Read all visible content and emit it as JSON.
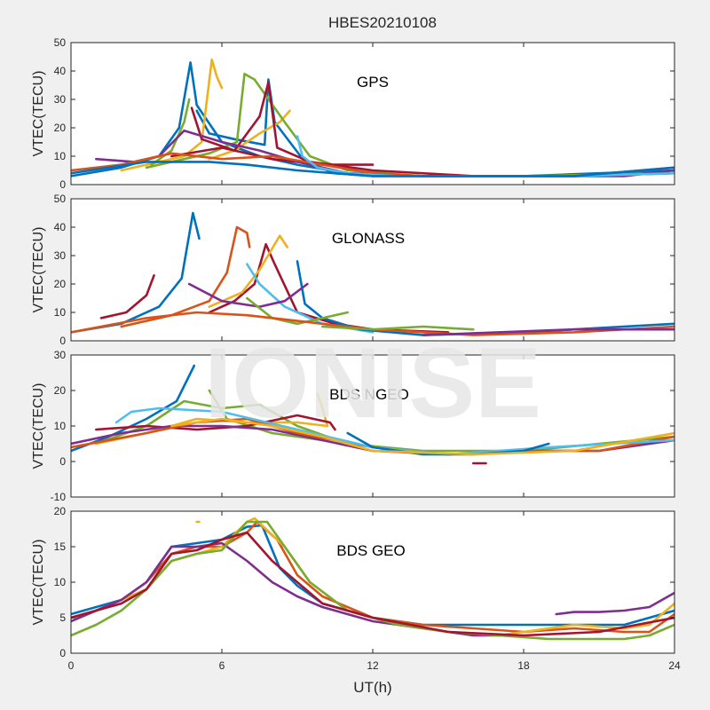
{
  "figure": {
    "title": "HBES20210108",
    "watermark": "IONISE",
    "xlabel": "UT(h)"
  },
  "colors": {
    "background": "#f0f0f0",
    "axes_bg": "#ffffff",
    "axis": "#262626",
    "watermark": "#e6e6e6",
    "series": [
      "#0072BD",
      "#D95319",
      "#EDB120",
      "#7E2F8E",
      "#77AC30",
      "#4DBEEE",
      "#A2142F"
    ]
  },
  "chart_data": [
    {
      "type": "line",
      "label": "GPS",
      "ylabel": "VTEC(TECU)",
      "xlim": [
        0,
        24
      ],
      "ylim": [
        0,
        50
      ],
      "xticks": [
        0,
        6,
        12,
        18,
        24
      ],
      "yticks": [
        0,
        10,
        20,
        30,
        40,
        50
      ],
      "show_xtick_labels": false,
      "series": [
        {
          "color": 0,
          "x": [
            0,
            2,
            3.5,
            4.3,
            4.75,
            5.0,
            6,
            7.5,
            9,
            11,
            14,
            18,
            24
          ],
          "y": [
            3,
            6,
            10,
            20,
            43,
            28,
            15,
            10,
            7,
            4,
            3,
            3,
            5
          ]
        },
        {
          "color": 0,
          "x": [
            5.0,
            5.5,
            6.5,
            7.7,
            7.85,
            8.1,
            9.3,
            10.5,
            12,
            15
          ],
          "y": [
            26,
            18,
            16,
            14,
            37,
            22,
            8,
            4,
            3,
            3
          ]
        },
        {
          "color": 2,
          "x": [
            2,
            3.5,
            4.5,
            5.2,
            5.6,
            5.8,
            6.0
          ],
          "y": [
            5,
            8,
            10,
            15,
            44,
            38,
            34
          ]
        },
        {
          "color": 2,
          "x": [
            5.5,
            6.5,
            7.5,
            8.3,
            8.7
          ],
          "y": [
            9,
            12,
            18,
            22,
            26
          ]
        },
        {
          "color": 4,
          "x": [
            3,
            4.5,
            5.5,
            6.6,
            6.9,
            7.3,
            8.5,
            9.5,
            11,
            14,
            18,
            24
          ],
          "y": [
            6,
            9,
            11,
            15,
            39,
            37,
            22,
            10,
            5,
            3,
            3,
            4
          ]
        },
        {
          "color": 4,
          "x": [
            3.2,
            4.0,
            4.5,
            4.7
          ],
          "y": [
            7,
            12,
            22,
            30
          ]
        },
        {
          "color": 6,
          "x": [
            4.8,
            5.2,
            6.5,
            7.5,
            7.85,
            8.2,
            9.5,
            12,
            16,
            20,
            24
          ],
          "y": [
            27,
            16,
            12,
            24,
            36,
            13,
            8,
            5,
            3,
            3,
            4
          ]
        },
        {
          "color": 6,
          "x": [
            4,
            6,
            8,
            10,
            12
          ],
          "y": [
            10,
            13,
            9,
            7,
            7
          ]
        },
        {
          "color": 3,
          "x": [
            1,
            2.5,
            3.5,
            4.5,
            6,
            7.5,
            9,
            11,
            14,
            18,
            22,
            24
          ],
          "y": [
            9,
            8,
            10,
            19,
            15,
            12,
            8,
            4,
            3,
            3,
            3,
            5
          ]
        },
        {
          "color": 1,
          "x": [
            0,
            2,
            4,
            6,
            8,
            10,
            12,
            14,
            17,
            20,
            24
          ],
          "y": [
            5,
            7,
            11,
            9,
            10,
            7,
            4,
            3,
            3,
            3,
            6
          ]
        },
        {
          "color": 5,
          "x": [
            9.0,
            9.2,
            9.8,
            11,
            13,
            16,
            20,
            24
          ],
          "y": [
            17,
            10,
            6,
            4,
            3,
            3,
            3,
            4
          ]
        },
        {
          "color": 0,
          "x": [
            0,
            3,
            5.5,
            7,
            9,
            12,
            16,
            20,
            24
          ],
          "y": [
            4,
            8,
            8,
            7,
            5,
            3,
            3,
            3,
            6
          ]
        }
      ]
    },
    {
      "type": "line",
      "label": "GLONASS",
      "ylabel": "VTEC(TECU)",
      "xlim": [
        0,
        24
      ],
      "ylim": [
        0,
        50
      ],
      "xticks": [
        0,
        6,
        12,
        18,
        24
      ],
      "yticks": [
        0,
        10,
        20,
        30,
        40,
        50
      ],
      "show_xtick_labels": false,
      "series": [
        {
          "color": 0,
          "x": [
            0,
            2,
            3.5,
            4.4,
            4.85,
            5.1
          ],
          "y": [
            3,
            6,
            12,
            22,
            45,
            36
          ]
        },
        {
          "color": 1,
          "x": [
            2,
            4,
            5.5,
            6.2,
            6.6,
            7.0,
            7.1
          ],
          "y": [
            5,
            9,
            14,
            24,
            40,
            38,
            33
          ]
        },
        {
          "color": 6,
          "x": [
            5.5,
            6.5,
            7.3,
            7.75,
            8.1,
            9,
            10.5,
            12,
            15
          ],
          "y": [
            10,
            14,
            20,
            34,
            27,
            10,
            6,
            4,
            3
          ]
        },
        {
          "color": 2,
          "x": [
            5.5,
            6.8,
            7.5,
            8.3,
            8.6
          ],
          "y": [
            12,
            17,
            25,
            37,
            33
          ]
        },
        {
          "color": 5,
          "x": [
            7.0,
            7.5,
            8.5,
            10,
            12
          ],
          "y": [
            27,
            20,
            12,
            6,
            3
          ]
        },
        {
          "color": 0,
          "x": [
            9.0,
            9.3,
            10,
            11.5,
            14,
            18,
            24
          ],
          "y": [
            28,
            13,
            8,
            4,
            2,
            3,
            6
          ]
        },
        {
          "color": 3,
          "x": [
            4.7,
            6,
            7.5,
            8.5,
            9.4
          ],
          "y": [
            20,
            14,
            12,
            14,
            20
          ]
        },
        {
          "color": 4,
          "x": [
            7,
            8,
            9,
            10,
            11
          ],
          "y": [
            15,
            8,
            6,
            8,
            10
          ]
        },
        {
          "color": 6,
          "x": [
            1.2,
            2.2,
            3.0,
            3.3
          ],
          "y": [
            8,
            10,
            16,
            23
          ]
        },
        {
          "color": 1,
          "x": [
            0,
            3,
            5,
            7,
            9,
            12,
            16,
            20,
            24
          ],
          "y": [
            3,
            8,
            10,
            9,
            7,
            4,
            2,
            3,
            5
          ]
        },
        {
          "color": 4,
          "x": [
            10,
            12,
            14,
            16
          ],
          "y": [
            5,
            4,
            5,
            4
          ]
        },
        {
          "color": 3,
          "x": [
            14,
            17,
            20,
            24
          ],
          "y": [
            2,
            3,
            4,
            4
          ]
        }
      ]
    },
    {
      "type": "line",
      "label": "BDS NGEO",
      "ylabel": "VTEC(TECU)",
      "xlim": [
        0,
        24
      ],
      "ylim": [
        -10,
        30
      ],
      "xticks": [
        0,
        6,
        12,
        18,
        24
      ],
      "yticks": [
        -10,
        0,
        10,
        20,
        30
      ],
      "show_xtick_labels": false,
      "series": [
        {
          "color": 0,
          "x": [
            0,
            1.5,
            3,
            4.2,
            4.9
          ],
          "y": [
            3,
            7,
            12,
            17,
            27
          ]
        },
        {
          "color": 4,
          "x": [
            1,
            3,
            4.5,
            6,
            7.5,
            9,
            11,
            14,
            18,
            24
          ],
          "y": [
            5,
            10,
            17,
            15,
            16,
            10,
            5,
            3,
            3,
            7
          ]
        },
        {
          "color": 4,
          "x": [
            5.5,
            6.2,
            8,
            10
          ],
          "y": [
            20,
            12,
            8,
            6
          ]
        },
        {
          "color": 2,
          "x": [
            1,
            3,
            5,
            7,
            9,
            10.2,
            10.0,
            9.8
          ],
          "y": [
            5,
            8,
            12,
            11,
            11,
            10,
            15,
            19
          ]
        },
        {
          "color": 6,
          "x": [
            1,
            3,
            5,
            7,
            9,
            10.3,
            10.5
          ],
          "y": [
            9,
            10,
            9,
            10,
            13,
            11,
            9
          ]
        },
        {
          "color": 3,
          "x": [
            0,
            2,
            4,
            6,
            8,
            10,
            12,
            15,
            18,
            21,
            24
          ],
          "y": [
            5,
            8,
            10,
            10,
            9,
            6,
            3,
            2,
            3,
            3,
            6
          ]
        },
        {
          "color": 1,
          "x": [
            0,
            3,
            5,
            7,
            9,
            12,
            15,
            18,
            21,
            24
          ],
          "y": [
            4,
            8,
            11,
            12,
            8,
            4,
            2,
            3,
            3,
            7
          ]
        },
        {
          "color": 5,
          "x": [
            1.8,
            2.4,
            3.5,
            6,
            9,
            12,
            15,
            19,
            24
          ],
          "y": [
            11,
            14,
            15,
            14,
            9,
            4,
            2,
            4,
            6
          ]
        },
        {
          "color": 0,
          "x": [
            11,
            12,
            14,
            16,
            18,
            19
          ],
          "y": [
            8,
            4,
            2,
            2,
            3,
            5
          ]
        },
        {
          "color": 2,
          "x": [
            4,
            6,
            8,
            10,
            12,
            16,
            20,
            24
          ],
          "y": [
            10,
            12,
            10,
            7,
            3,
            2,
            3,
            8
          ]
        },
        {
          "color": 6,
          "x": [
            16,
            16.5
          ],
          "y": [
            -0.5,
            -0.5
          ]
        }
      ]
    },
    {
      "type": "line",
      "label": "BDS GEO",
      "ylabel": "VTEC(TECU)",
      "xlim": [
        0,
        24
      ],
      "ylim": [
        0,
        20
      ],
      "xticks": [
        0,
        6,
        12,
        18,
        24
      ],
      "yticks": [
        0,
        5,
        10,
        15,
        20
      ],
      "show_xtick_labels": true,
      "series": [
        {
          "color": 0,
          "x": [
            0,
            1,
            2,
            3,
            4,
            5,
            6,
            7,
            7.6,
            8.3,
            9,
            10,
            12,
            14,
            16,
            18,
            20,
            22,
            23,
            24
          ],
          "y": [
            5.5,
            6.5,
            7.5,
            10,
            15,
            15.5,
            16,
            17.8,
            18,
            12,
            9.5,
            7,
            5,
            4,
            4,
            4,
            4,
            4,
            5,
            6
          ]
        },
        {
          "color": 1,
          "x": [
            0,
            1,
            2,
            3,
            4,
            5,
            6,
            7,
            7.4,
            8.2,
            9,
            10,
            12,
            14,
            16,
            18,
            20,
            22,
            23,
            24
          ],
          "y": [
            5,
            6,
            7.5,
            10,
            14,
            15,
            15,
            17,
            18.5,
            16,
            11,
            8,
            5,
            4,
            3.5,
            3,
            3.5,
            3,
            3,
            5.5
          ]
        },
        {
          "color": 2,
          "x": [
            0,
            1,
            2,
            3,
            4,
            5,
            6,
            7,
            7.3,
            8.5,
            9.5,
            11,
            13,
            15,
            17,
            18,
            20,
            22,
            23,
            24
          ],
          "y": [
            5,
            6,
            7.5,
            9,
            13,
            14,
            15,
            18.5,
            19,
            15,
            10,
            6,
            4,
            3,
            2.5,
            3,
            4,
            3.5,
            4,
            7
          ]
        },
        {
          "color": 3,
          "x": [
            0,
            1,
            2,
            3,
            4,
            5,
            6,
            7,
            8,
            9,
            10,
            12,
            14,
            16,
            18
          ],
          "y": [
            4.5,
            6,
            7.5,
            10,
            15,
            15,
            15.5,
            13,
            10,
            8,
            6.5,
            4.5,
            3.5,
            2.5,
            2.5
          ]
        },
        {
          "color": 3,
          "x": [
            19.3,
            20,
            21,
            22,
            23,
            24
          ],
          "y": [
            5.5,
            5.8,
            5.8,
            6,
            6.5,
            8.5
          ]
        },
        {
          "color": 4,
          "x": [
            0,
            1,
            2,
            3,
            4,
            5,
            6,
            7,
            7.8,
            8.5,
            9.5,
            11,
            13,
            15,
            17,
            19,
            21,
            22,
            23,
            24
          ],
          "y": [
            2.5,
            4,
            6,
            9,
            13,
            14,
            14.5,
            18.5,
            18.5,
            15,
            10,
            6,
            4,
            3,
            2.5,
            2,
            2,
            2,
            2.5,
            4
          ]
        },
        {
          "color": 6,
          "x": [
            0,
            1,
            2,
            3,
            4,
            5,
            6,
            7,
            8,
            9,
            10,
            12,
            15,
            18,
            21,
            24
          ],
          "y": [
            5,
            6,
            7,
            9,
            14,
            14.5,
            16,
            17,
            13,
            10,
            7,
            5,
            3,
            2.5,
            3,
            5
          ]
        },
        {
          "color": 2,
          "x": [
            5.0,
            5.1
          ],
          "y": [
            18.5,
            18.5
          ]
        }
      ]
    }
  ]
}
